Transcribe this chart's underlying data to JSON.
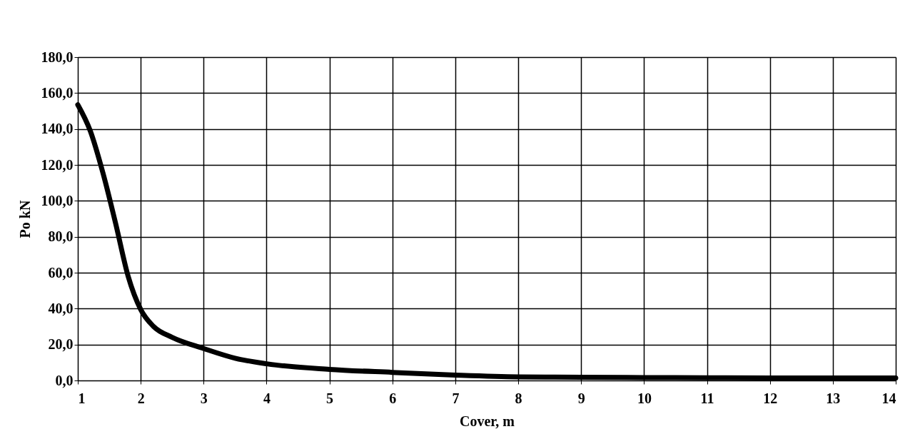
{
  "chart_data": {
    "type": "line",
    "xlabel": "Cover, m",
    "ylabel": "Po kN",
    "series": [
      {
        "color": "#000000",
        "x": [
          1,
          1.2,
          1.4,
          1.6,
          1.8,
          2,
          2.2,
          2.5,
          3,
          3.5,
          4,
          5,
          6,
          7,
          8,
          9,
          10,
          11,
          12,
          13,
          14
        ],
        "values": [
          153.5,
          138.8,
          115.5,
          87.6,
          58,
          39.5,
          30.2,
          24,
          17.8,
          12.4,
          9.3,
          6.2,
          4.5,
          3,
          2,
          1.8,
          1.6,
          1.5,
          1.4,
          1.4,
          1.4
        ]
      }
    ],
    "xlim": [
      1,
      14
    ],
    "xticks": [
      1,
      2,
      3,
      4,
      5,
      6,
      7,
      8,
      9,
      10,
      11,
      12,
      13,
      14
    ],
    "ylim": [
      0,
      180
    ],
    "yticks": [
      {
        "value": 0,
        "label": "0,0"
      },
      {
        "value": 20,
        "label": "20,0"
      },
      {
        "value": 40,
        "label": "40,0"
      },
      {
        "value": 60,
        "label": "60,0"
      },
      {
        "value": 80,
        "label": "80,0"
      },
      {
        "value": 100,
        "label": "100,0"
      },
      {
        "value": 120,
        "label": "120,0"
      },
      {
        "value": 140,
        "label": "140,0"
      },
      {
        "value": 160,
        "label": "160,0"
      },
      {
        "value": 180,
        "label": "180,0"
      }
    ],
    "grid": true,
    "line_style": "solid"
  }
}
